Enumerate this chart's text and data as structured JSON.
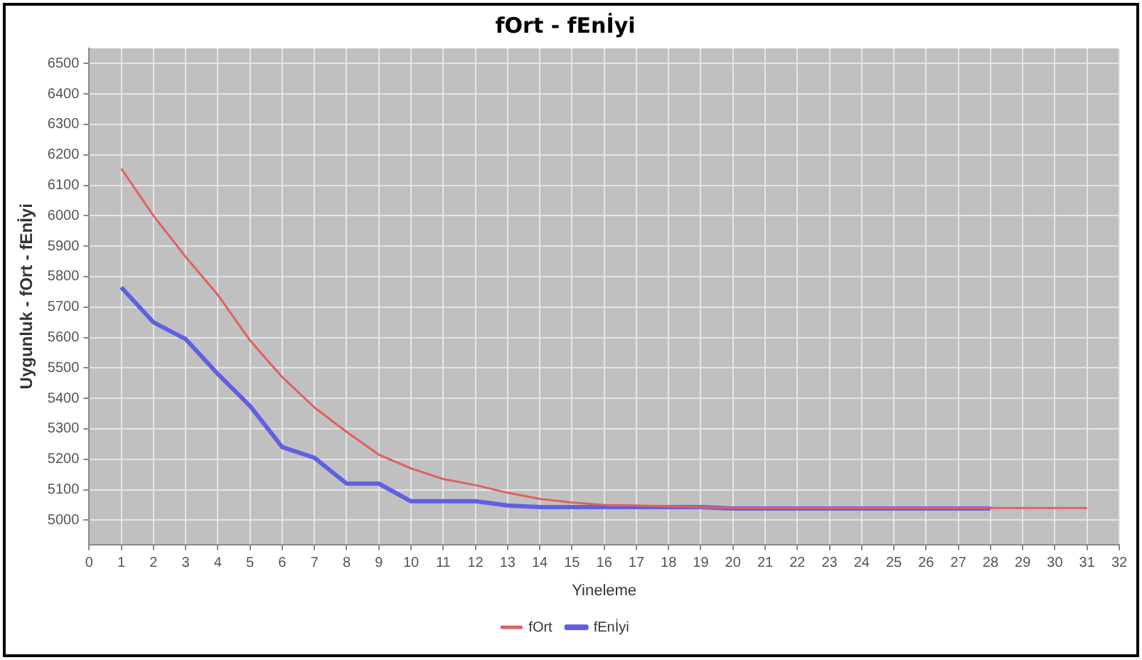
{
  "chart_data": {
    "type": "line",
    "title": "fOrt - fEnİyi",
    "xlabel": "Yineleme",
    "ylabel": "Uygunluk - fOrt - fEnİyi",
    "xlim": [
      0,
      32
    ],
    "xticks": [
      0,
      1,
      2,
      3,
      4,
      5,
      6,
      7,
      8,
      9,
      10,
      11,
      12,
      13,
      14,
      15,
      16,
      17,
      18,
      19,
      20,
      21,
      22,
      23,
      24,
      25,
      26,
      27,
      28,
      29,
      30,
      31,
      32
    ],
    "ylim": [
      4920,
      6550
    ],
    "yticks": [
      5000,
      5100,
      5200,
      5300,
      5400,
      5500,
      5600,
      5700,
      5800,
      5900,
      6000,
      6100,
      6200,
      6300,
      6400,
      6500
    ],
    "grid": true,
    "legend": "bottom",
    "marker": "none",
    "line_style": "solid",
    "series": [
      {
        "name": "fOrt",
        "color": "#e06060",
        "x": [
          1,
          2,
          3,
          4,
          5,
          6,
          7,
          8,
          9,
          10,
          11,
          12,
          13,
          14,
          15,
          16,
          17,
          18,
          19,
          20,
          21,
          22,
          23,
          24,
          25,
          26,
          27,
          28,
          29,
          30,
          31
        ],
        "values": [
          6155,
          6000,
          5865,
          5740,
          5590,
          5470,
          5370,
          5290,
          5215,
          5170,
          5135,
          5115,
          5090,
          5070,
          5058,
          5050,
          5048,
          5045,
          5043,
          5040,
          5040,
          5040,
          5040,
          5040,
          5040,
          5040,
          5040,
          5040,
          5040,
          5040,
          5040
        ]
      },
      {
        "name": "fEnİyi",
        "color": "#6060e0",
        "x": [
          1,
          2,
          3,
          4,
          5,
          6,
          7,
          8,
          9,
          10,
          11,
          12,
          13,
          14,
          15,
          16,
          17,
          18,
          19,
          20,
          21,
          22,
          23,
          24,
          25,
          26,
          27,
          28
        ],
        "values": [
          5765,
          5650,
          5595,
          5480,
          5375,
          5240,
          5205,
          5120,
          5120,
          5062,
          5062,
          5062,
          5048,
          5043,
          5043,
          5043,
          5043,
          5043,
          5043,
          5038,
          5038,
          5038,
          5038,
          5038,
          5038,
          5038,
          5038,
          5038
        ]
      }
    ]
  }
}
